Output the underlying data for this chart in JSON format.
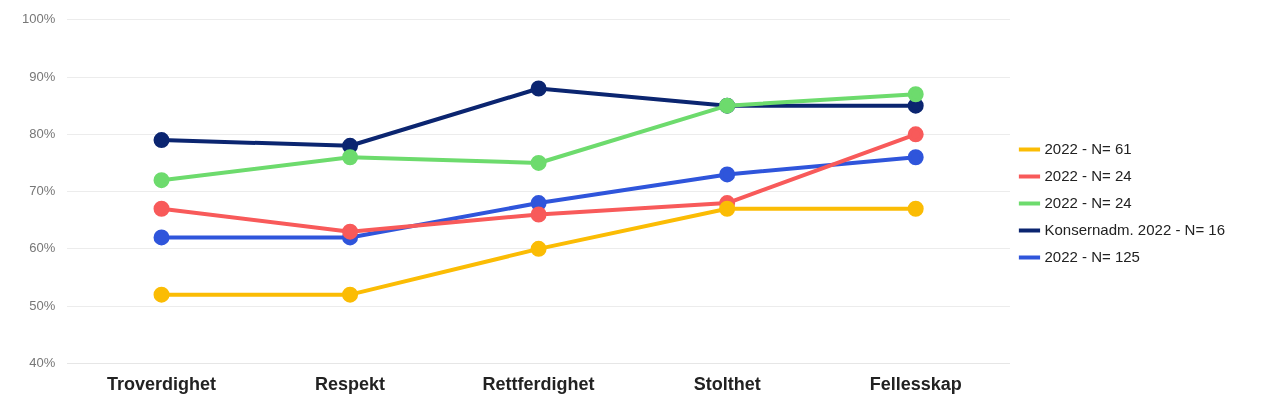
{
  "chart_data": {
    "type": "line",
    "categories": [
      "Troverdighet",
      "Respekt",
      "Rettferdighet",
      "Stolthet",
      "Fellesskap"
    ],
    "series": [
      {
        "name": "2022 - N= 61",
        "color": "#fbbc04",
        "values": [
          52,
          52,
          60,
          67,
          67
        ]
      },
      {
        "name": "2022 - N= 24",
        "color": "#f85a5a",
        "values": [
          67,
          63,
          66,
          68,
          80
        ]
      },
      {
        "name": "2022 - N= 24",
        "color": "#6ddb6d",
        "values": [
          72,
          76,
          75,
          85,
          87
        ]
      },
      {
        "name": "Konsernadm. 2022 - N= 16",
        "color": "#0b2570",
        "values": [
          79,
          78,
          88,
          85,
          85
        ]
      },
      {
        "name": "2022 - N= 125",
        "color": "#2f55db",
        "values": [
          62,
          62,
          68,
          73,
          76
        ]
      }
    ],
    "ylim": [
      40,
      100
    ],
    "yticks": [
      {
        "value": 40,
        "label": "40%"
      },
      {
        "value": 50,
        "label": "50%"
      },
      {
        "value": 60,
        "label": "60%"
      },
      {
        "value": 70,
        "label": "70%"
      },
      {
        "value": 80,
        "label": "80%"
      },
      {
        "value": 90,
        "label": "90%"
      },
      {
        "value": 100,
        "label": "100%"
      }
    ],
    "grid": "y",
    "legend": "right",
    "marker": "circle",
    "line_style": "solid"
  }
}
